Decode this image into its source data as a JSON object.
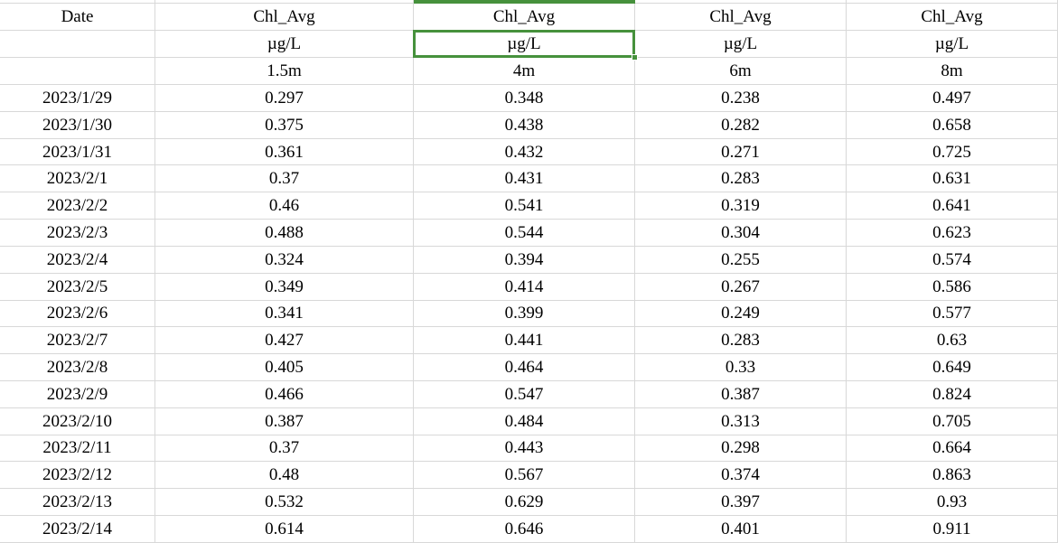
{
  "table": {
    "columns": [
      {
        "header": "Date",
        "unit": "",
        "depth": ""
      },
      {
        "header": "Chl_Avg",
        "unit": "µg/L",
        "depth": "1.5m"
      },
      {
        "header": "Chl_Avg",
        "unit": "µg/L",
        "depth": "4m"
      },
      {
        "header": "Chl_Avg",
        "unit": "µg/L",
        "depth": "6m"
      },
      {
        "header": "Chl_Avg",
        "unit": "µg/L",
        "depth": "8m"
      }
    ],
    "rows": [
      [
        "2023/1/29",
        "0.297",
        "0.348",
        "0.238",
        "0.497"
      ],
      [
        "2023/1/30",
        "0.375",
        "0.438",
        "0.282",
        "0.658"
      ],
      [
        "2023/1/31",
        "0.361",
        "0.432",
        "0.271",
        "0.725"
      ],
      [
        "2023/2/1",
        "0.37",
        "0.431",
        "0.283",
        "0.631"
      ],
      [
        "2023/2/2",
        "0.46",
        "0.541",
        "0.319",
        "0.641"
      ],
      [
        "2023/2/3",
        "0.488",
        "0.544",
        "0.304",
        "0.623"
      ],
      [
        "2023/2/4",
        "0.324",
        "0.394",
        "0.255",
        "0.574"
      ],
      [
        "2023/2/5",
        "0.349",
        "0.414",
        "0.267",
        "0.586"
      ],
      [
        "2023/2/6",
        "0.341",
        "0.399",
        "0.249",
        "0.577"
      ],
      [
        "2023/2/7",
        "0.427",
        "0.441",
        "0.283",
        "0.63"
      ],
      [
        "2023/2/8",
        "0.405",
        "0.464",
        "0.33",
        "0.649"
      ],
      [
        "2023/2/9",
        "0.466",
        "0.547",
        "0.387",
        "0.824"
      ],
      [
        "2023/2/10",
        "0.387",
        "0.484",
        "0.313",
        "0.705"
      ],
      [
        "2023/2/11",
        "0.37",
        "0.443",
        "0.298",
        "0.664"
      ],
      [
        "2023/2/12",
        "0.48",
        "0.567",
        "0.374",
        "0.863"
      ],
      [
        "2023/2/13",
        "0.532",
        "0.629",
        "0.397",
        "0.93"
      ],
      [
        "2023/2/14",
        "0.614",
        "0.646",
        "0.401",
        "0.911"
      ]
    ]
  },
  "selection": {
    "selected_value": "µg/L",
    "selected_column_depth": "4m",
    "selected_column_index": 2,
    "selected_row": "units"
  },
  "colors": {
    "selection_green": "#46913C",
    "gridline": "#d8d8d8",
    "background": "#ffffff",
    "text": "#000000"
  }
}
